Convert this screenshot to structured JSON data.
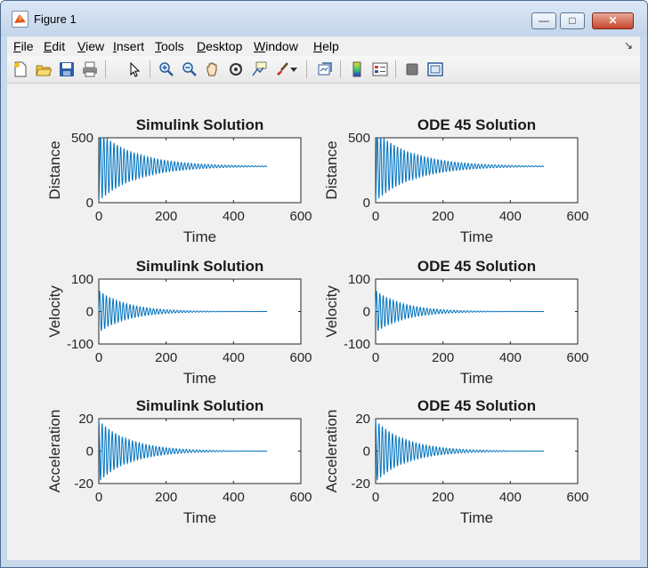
{
  "window": {
    "title": "Figure 1",
    "buttons": {
      "minimize": "—",
      "maximize": "□",
      "close": "✕"
    }
  },
  "menubar": {
    "items": [
      "File",
      "Edit",
      "View",
      "Insert",
      "Tools",
      "Desktop",
      "Window",
      "Help"
    ],
    "overflow": "↘"
  },
  "toolbar": {
    "icons": [
      "new-figure-icon",
      "open-file-icon",
      "save-icon",
      "print-icon",
      "pointer-icon",
      "zoom-in-icon",
      "zoom-out-icon",
      "pan-icon",
      "rotate-3d-icon",
      "data-cursor-icon",
      "brush-icon",
      "brush-dropdown-icon",
      "link-plot-icon",
      "colorbar-icon",
      "legend-icon",
      "hide-plot-tools-icon",
      "show-plot-tools-icon"
    ]
  },
  "chart_data": [
    {
      "type": "line",
      "title": "Simulink Solution",
      "xlabel": "Time",
      "ylabel": "Distance",
      "xlim": [
        0,
        600
      ],
      "ylim": [
        0,
        500
      ],
      "xticks": [
        0,
        200,
        400,
        600
      ],
      "yticks": [
        0,
        500
      ],
      "x": [
        0,
        500
      ],
      "signal": {
        "kind": "position",
        "start": 10,
        "equilibrium": 280,
        "amplitude": 180,
        "period": 10,
        "decay": 0.009
      },
      "color": "#0072bd"
    },
    {
      "type": "line",
      "title": "ODE 45 Solution",
      "xlabel": "Time",
      "ylabel": "Distance",
      "xlim": [
        0,
        600
      ],
      "ylim": [
        0,
        500
      ],
      "xticks": [
        0,
        200,
        400,
        600
      ],
      "yticks": [
        0,
        500
      ],
      "x": [
        0,
        500
      ],
      "signal": {
        "kind": "position",
        "start": 10,
        "equilibrium": 280,
        "amplitude": 180,
        "period": 10,
        "decay": 0.009
      },
      "color": "#0072bd"
    },
    {
      "type": "line",
      "title": "Simulink Solution",
      "xlabel": "Time",
      "ylabel": "Velocity",
      "xlim": [
        0,
        600
      ],
      "ylim": [
        -100,
        100
      ],
      "xticks": [
        0,
        200,
        400,
        600
      ],
      "yticks": [
        -100,
        0,
        100
      ],
      "x": [
        0,
        500
      ],
      "signal": {
        "kind": "velocity",
        "amplitude": 65,
        "period": 10,
        "decay": 0.012
      },
      "color": "#0072bd"
    },
    {
      "type": "line",
      "title": "ODE 45 Solution",
      "xlabel": "Time",
      "ylabel": "Velocity",
      "xlim": [
        0,
        600
      ],
      "ylim": [
        -100,
        100
      ],
      "xticks": [
        0,
        200,
        400,
        600
      ],
      "yticks": [
        -100,
        0,
        100
      ],
      "x": [
        0,
        500
      ],
      "signal": {
        "kind": "velocity",
        "amplitude": 65,
        "period": 10,
        "decay": 0.012
      },
      "color": "#0072bd"
    },
    {
      "type": "line",
      "title": "Simulink Solution",
      "xlabel": "Time",
      "ylabel": "Acceleration",
      "xlim": [
        0,
        600
      ],
      "ylim": [
        -20,
        20
      ],
      "xticks": [
        0,
        200,
        400,
        600
      ],
      "yticks": [
        -20,
        0,
        20
      ],
      "x": [
        0,
        500
      ],
      "signal": {
        "kind": "acceleration",
        "amplitude": 19,
        "period": 10,
        "decay": 0.011
      },
      "color": "#0072bd"
    },
    {
      "type": "line",
      "title": "ODE 45 Solution",
      "xlabel": "Time",
      "ylabel": "Acceleration",
      "xlim": [
        0,
        600
      ],
      "ylim": [
        -20,
        20
      ],
      "xticks": [
        0,
        200,
        400,
        600
      ],
      "yticks": [
        -20,
        0,
        20
      ],
      "x": [
        0,
        500
      ],
      "signal": {
        "kind": "acceleration",
        "amplitude": 19,
        "period": 10,
        "decay": 0.011
      },
      "color": "#0072bd"
    }
  ]
}
